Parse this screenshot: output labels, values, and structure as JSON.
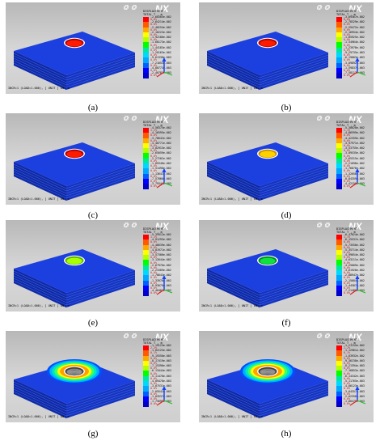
{
  "colors": {
    "legend": [
      "#ff0000",
      "#ff5a00",
      "#ffa800",
      "#ffff00",
      "#b4ff00",
      "#00ff00",
      "#00e8a0",
      "#00d8ff",
      "#00a8ff",
      "#0060ff",
      "#0000ff",
      "#0000c8"
    ],
    "block_top": "#1c3fe0",
    "block_left": "#0f2aa8",
    "block_right": "#1534c2",
    "layer_line": "#5a7be8"
  },
  "panels": [
    {
      "caption": "(a)",
      "brand": "NX",
      "result_title": "DISPLACEMENT",
      "result_sub": "TOTAL T , m",
      "status": "INCR=1 (LOAD=1.000), [ UNIT ] kN, m",
      "hole": "red",
      "halo": false,
      "legend": [
        [
          "-2.60305e-002",
          "0.0%"
        ],
        [
          "-2.64214e-002",
          "0.0%"
        ],
        [
          "-2.40254e-002",
          "0.0%"
        ],
        [
          "-2.16223e-002",
          "0.0%"
        ],
        [
          "-1.92180e-002",
          "0.0%"
        ],
        [
          "-1.68173e-002",
          "0.0%"
        ],
        [
          "-1.44183e-002",
          "0.0%"
        ],
        [
          "-1.20163e-002",
          "0.0%"
        ],
        [
          "-9.61338e-003",
          "0.0%"
        ],
        [
          "-7.21053e-003",
          "0.0%"
        ],
        [
          "-4.80773e-003",
          "0.0%"
        ],
        [
          "-2.40782e-003",
          "0.0%"
        ]
      ]
    },
    {
      "caption": "(b)",
      "brand": "NX",
      "result_title": "DISPLACEMENT",
      "result_sub": "TOTAL T , m",
      "status": "INCR=1 (LOAD=1.000), [ UNIT ] kN, m",
      "hole": "red",
      "halo": false,
      "legend": [
        [
          "-3.09367e-002",
          "0.0%"
        ],
        [
          "-2.78329e-002",
          "0.0%"
        ],
        [
          "-2.29472e-002",
          "0.0%"
        ],
        [
          "-2.16954e-002",
          "0.0%"
        ],
        [
          "-1.85925e-002",
          "0.0%"
        ],
        [
          "-1.54964e-002",
          "0.0%"
        ],
        [
          "-1.23978e-002",
          "0.0%"
        ],
        [
          "-9.29735e-003",
          "0.0%"
        ],
        [
          "-6.19803e-003",
          "0.0%"
        ],
        [
          "-3.09892e-003",
          "0.0%"
        ],
        [
          "-1.59837e-003",
          "0.0%"
        ],
        [
          "-7.58117e-003",
          "0.0%"
        ]
      ]
    },
    {
      "caption": "(c)",
      "brand": "NX",
      "result_title": "DISPLACEMENT",
      "result_sub": "TOTAL T , m",
      "status": "INCR=1 (LOAD=1.000), [ UNIT ] kN, m",
      "hole": "red",
      "halo": false,
      "legend": [
        [
          "-4.56375e-002",
          "1.1%"
        ],
        [
          "-4.16595e-002",
          "0.0%"
        ],
        [
          "-3.78642e-002",
          "0.0%"
        ],
        [
          "-3.40771e-002",
          "0.0%"
        ],
        [
          "-3.02915e-002",
          "0.0%"
        ],
        [
          "-2.65059e-002",
          "0.0%"
        ],
        [
          "-2.27202e-002",
          "0.0%"
        ],
        [
          "-1.89346e-002",
          "0.0%"
        ],
        [
          "-1.51490e-002",
          "0.0%"
        ],
        [
          "-1.13641e-002",
          "0.0%"
        ],
        [
          "-7.57866e-003",
          "0.0%"
        ],
        [
          "-3.79344e-003",
          "0.0%"
        ]
      ]
    },
    {
      "caption": "(d)",
      "brand": "NX",
      "result_title": "DISPLACEMENT",
      "result_sub": "TOTAL T , m",
      "status": "INCR=1 (LOAD=1.000), [ UNIT ] kN, m",
      "hole": "yellow",
      "halo": false,
      "legend": [
        [
          "-5.30628e-002",
          "1.1%"
        ],
        [
          "-4.86599e-002",
          "0.0%"
        ],
        [
          "-4.42359e-002",
          "0.0%"
        ],
        [
          "-3.97971e-002",
          "0.0%"
        ],
        [
          "-3.53755e-002",
          "0.0%"
        ],
        [
          "-3.09535e-002",
          "0.0%"
        ],
        [
          "-2.65315e-002",
          "0.0%"
        ],
        [
          "-2.21096e-002",
          "0.0%"
        ],
        [
          "-1.76876e-002",
          "0.0%"
        ],
        [
          "-1.32656e-002",
          "0.0%"
        ],
        [
          "-8.84359e-003",
          "0.0%"
        ],
        [
          "-4.42150e-003",
          "0.0%"
        ]
      ]
    },
    {
      "caption": "(e)",
      "brand": "NX",
      "result_title": "DISPLACEMENT",
      "result_sub": "TOTAL T , m",
      "status": "INCR=1 (LOAD=1.000), [ UNIT ] kN, m",
      "hole": "lime",
      "halo": false,
      "legend": [
        [
          "-5.35912e-002",
          "1.1%"
        ],
        [
          "-4.91293e-002",
          "0.0%"
        ],
        [
          "-4.46639e-002",
          "0.0%"
        ],
        [
          "-4.01971e-002",
          "0.0%"
        ],
        [
          "-3.57306e-002",
          "0.0%"
        ],
        [
          "-3.12644e-002",
          "0.0%"
        ],
        [
          "-2.67976e-002",
          "0.0%"
        ],
        [
          "-2.23309e-002",
          "0.0%"
        ],
        [
          "-1.78643e-002",
          "0.0%"
        ],
        [
          "-1.33976e-002",
          "0.0%"
        ],
        [
          "-8.93079e-003",
          "0.0%"
        ],
        [
          "-4.46402e-003",
          "0.0%"
        ]
      ]
    },
    {
      "caption": "(f)",
      "brand": "NX",
      "result_title": "DISPLACEMENT",
      "result_sub": "TOTAL T , m",
      "status": "INCR=1 (LOAD=1.000), [ UNIT ] kN, m",
      "hole": "green",
      "halo": false,
      "legend": [
        [
          "-6.47624e-002",
          "1.1%"
        ],
        [
          "-6.15537e-002",
          "0.0%"
        ],
        [
          "-5.73550e-002",
          "0.0%"
        ],
        [
          "-5.35714e-002",
          "0.0%"
        ],
        [
          "-4.99654e-002",
          "0.0%"
        ],
        [
          "-4.63111e-002",
          "0.0%"
        ],
        [
          "-4.25009e-002",
          "0.0%"
        ],
        [
          "-3.61926e-002",
          "0.0%"
        ],
        [
          "-2.88947e-002",
          "0.0%"
        ],
        [
          "-2.15684e-002",
          "0.0%"
        ],
        [
          "-1.44587e-002",
          "0.0%"
        ],
        [
          "-7.21489e-003",
          "0.0%"
        ]
      ]
    },
    {
      "caption": "(g)",
      "brand": "NX",
      "result_title": "DISPLACEMENT",
      "result_sub": "TOTAL T , m",
      "status": "INCR=1 (LOAD=1.000), [ UNIT ] kN, m",
      "hole": "ring",
      "halo": true,
      "legend": [
        [
          "-1.19123e-002",
          "2.2%"
        ],
        [
          "-1.02125e-002",
          "0.1%"
        ],
        [
          "-9.19350e-003",
          "0.0%"
        ],
        [
          "-8.17419e-003",
          "0.0%"
        ],
        [
          "-7.15396e-003",
          "0.0%"
        ],
        [
          "-6.13444e-003",
          "0.0%"
        ],
        [
          "-5.11478e-003",
          "0.0%"
        ],
        [
          "-4.09478e-003",
          "0.0%"
        ],
        [
          "-3.07531e-003",
          "0.0%"
        ],
        [
          "-2.05542e-003",
          "0.0%"
        ],
        [
          "-1.03537e-003",
          "0.0%"
        ],
        [
          "-1.75695e-003",
          "0.0%"
        ]
      ]
    },
    {
      "caption": "(h)",
      "brand": "NX",
      "result_title": "DISPLACEMENT",
      "result_sub": "TOTAL T , m",
      "status": "INCR=1 (LOAD=1.000), [ UNIT ] kN, m",
      "hole": "ring",
      "halo": true,
      "legend": [
        [
          "-1.21155e-002",
          "2.2%"
        ],
        [
          "-1.12961e-002",
          "0.1%"
        ],
        [
          "-1.03932e-002",
          "0.0%"
        ],
        [
          "-9.36238e-003",
          "0.0%"
        ],
        [
          "-8.21394e-003",
          "0.0%"
        ],
        [
          "-7.16853e-003",
          "0.0%"
        ],
        [
          "-6.14342e-003",
          "0.0%"
        ],
        [
          "-5.11765e-003",
          "0.0%"
        ],
        [
          "-4.06123e-003",
          "0.0%"
        ],
        [
          "-3.04357e-003",
          "0.0%"
        ],
        [
          "-2.02356e-003",
          "0.0%"
        ],
        [
          "-1.00479e-003",
          "0.0%"
        ]
      ]
    }
  ]
}
